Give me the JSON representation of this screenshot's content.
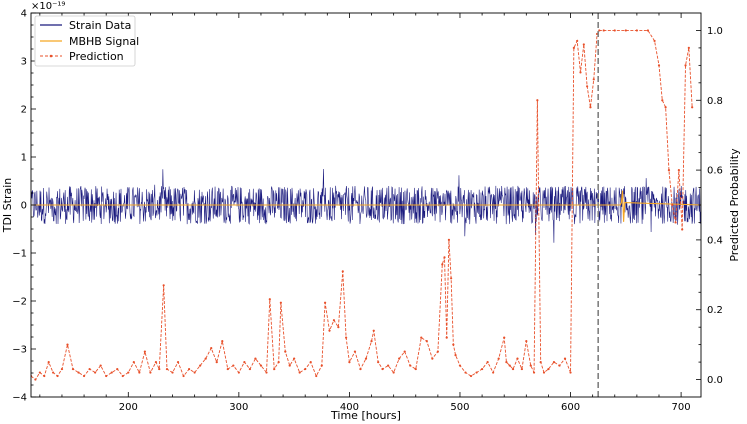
{
  "chart_data": {
    "type": "line",
    "xlabel": "Time [hours]",
    "ylabel": "TDI Strain",
    "y2label": "Predicted Probability",
    "y_offset_text": "×10⁻¹⁹",
    "xlim": [
      112,
      718
    ],
    "ylim": [
      -4,
      4
    ],
    "y2lim": [
      -0.05,
      1.05
    ],
    "xticks": [
      200,
      300,
      400,
      500,
      600,
      700
    ],
    "yticks": [
      -4,
      -3,
      -2,
      -1,
      0,
      1,
      2,
      3,
      4
    ],
    "y2ticks": [
      0.0,
      0.2,
      0.4,
      0.6,
      0.8,
      1.0
    ],
    "xtick_labels": [
      "200",
      "300",
      "400",
      "500",
      "600",
      "700"
    ],
    "ytick_labels": [
      "−4",
      "−3",
      "−2",
      "−1",
      "0",
      "1",
      "2",
      "3",
      "4"
    ],
    "y2tick_labels": [
      "0.0",
      "0.2",
      "0.4",
      "0.6",
      "0.8",
      "1.0"
    ],
    "vline_x": 625,
    "legend_position": "top-left",
    "colors": {
      "strain": "#1a1a7e",
      "signal": "#f5a623",
      "prediction": "#e8502a",
      "vline": "#808080"
    },
    "series": [
      {
        "name": "Strain Data",
        "axis": "left",
        "style": "noise band",
        "amplitude_typical": 0.4,
        "amplitude_max": 0.8
      },
      {
        "name": "MBHB Signal",
        "axis": "left",
        "x": [
          112,
          645,
          646,
          647,
          648,
          649,
          718
        ],
        "y": [
          0,
          0,
          0.05,
          0.3,
          -0.35,
          0.05,
          0
        ]
      },
      {
        "name": "Prediction",
        "axis": "right",
        "x": [
          112,
          116,
          120,
          124,
          128,
          132,
          136,
          140,
          145,
          150,
          155,
          160,
          165,
          170,
          175,
          180,
          185,
          190,
          195,
          200,
          205,
          210,
          215,
          220,
          225,
          228,
          232,
          235,
          240,
          245,
          250,
          255,
          260,
          265,
          270,
          275,
          280,
          285,
          290,
          295,
          300,
          305,
          310,
          315,
          320,
          325,
          328,
          332,
          336,
          338,
          342,
          346,
          350,
          355,
          360,
          365,
          370,
          375,
          378,
          382,
          386,
          390,
          394,
          397,
          400,
          405,
          410,
          415,
          420,
          422,
          426,
          430,
          435,
          440,
          445,
          450,
          455,
          460,
          465,
          470,
          475,
          480,
          484,
          486,
          488,
          490,
          492,
          494,
          496,
          500,
          505,
          510,
          515,
          520,
          525,
          530,
          535,
          540,
          542,
          545,
          548,
          552,
          556,
          560,
          564,
          567,
          570,
          573,
          576,
          580,
          585,
          590,
          595,
          600,
          603,
          606,
          609,
          612,
          615,
          618,
          621,
          624,
          626,
          630,
          640,
          650,
          660,
          670,
          676,
          680,
          683,
          686,
          689,
          692,
          695,
          698,
          701,
          704,
          707,
          710
        ],
        "y": [
          0.01,
          0.0,
          0.02,
          0.01,
          0.05,
          0.02,
          0.01,
          0.03,
          0.1,
          0.03,
          0.02,
          0.01,
          0.03,
          0.02,
          0.04,
          0.01,
          0.02,
          0.03,
          0.01,
          0.02,
          0.05,
          0.02,
          0.08,
          0.02,
          0.05,
          0.03,
          0.27,
          0.03,
          0.02,
          0.05,
          0.01,
          0.03,
          0.02,
          0.04,
          0.06,
          0.09,
          0.05,
          0.11,
          0.03,
          0.04,
          0.02,
          0.05,
          0.03,
          0.06,
          0.04,
          0.02,
          0.23,
          0.03,
          0.05,
          0.22,
          0.08,
          0.04,
          0.06,
          0.02,
          0.03,
          0.05,
          0.01,
          0.04,
          0.22,
          0.14,
          0.17,
          0.15,
          0.31,
          0.12,
          0.05,
          0.08,
          0.03,
          0.06,
          0.11,
          0.14,
          0.05,
          0.03,
          0.04,
          0.02,
          0.06,
          0.08,
          0.04,
          0.03,
          0.12,
          0.11,
          0.06,
          0.08,
          0.33,
          0.35,
          0.12,
          0.4,
          0.29,
          0.1,
          0.07,
          0.04,
          0.02,
          0.01,
          0.02,
          0.03,
          0.05,
          0.02,
          0.06,
          0.12,
          0.05,
          0.04,
          0.03,
          0.06,
          0.03,
          0.11,
          0.04,
          0.02,
          0.8,
          0.05,
          0.02,
          0.03,
          0.05,
          0.04,
          0.06,
          0.02,
          0.95,
          0.97,
          0.88,
          0.96,
          0.84,
          0.78,
          0.86,
          0.99,
          1.0,
          1.0,
          1.0,
          1.0,
          1.0,
          1.0,
          0.97,
          0.9,
          0.8,
          0.78,
          0.6,
          0.5,
          0.45,
          0.6,
          0.43,
          0.9,
          0.95,
          0.78
        ]
      }
    ]
  }
}
